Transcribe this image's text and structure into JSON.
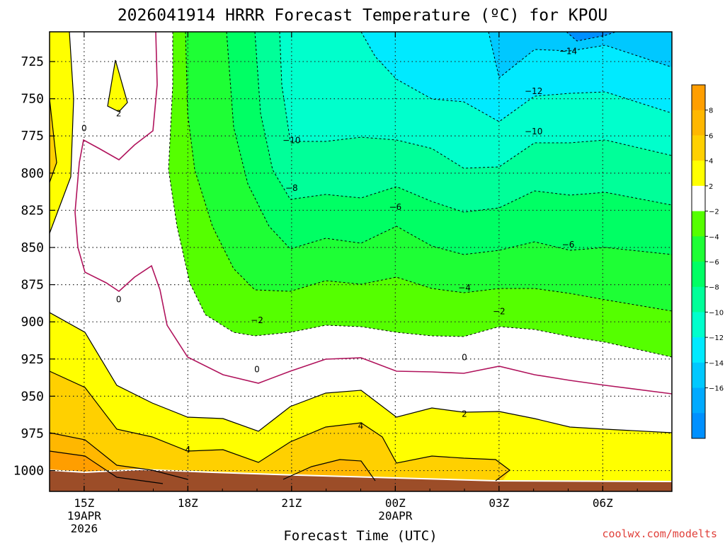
{
  "chart_data": {
    "type": "heatmap",
    "title": "2026041914 HRRR Forecast Temperature (ºC) for KPOU",
    "xlabel": "Forecast Time (UTC)",
    "ylabel": "",
    "y_axis": {
      "scale": "pressure (reversed)",
      "ticks": [
        725,
        750,
        775,
        800,
        825,
        850,
        875,
        900,
        925,
        950,
        975,
        1000
      ],
      "range": [
        1014,
        705
      ]
    },
    "x_axis": {
      "ticks": [
        {
          "hour": 15,
          "lines": [
            "15Z",
            "19APR",
            "2026"
          ]
        },
        {
          "hour": 18,
          "lines": [
            "18Z"
          ]
        },
        {
          "hour": 21,
          "lines": [
            "21Z"
          ]
        },
        {
          "hour": 24,
          "lines": [
            "00Z",
            "20APR"
          ]
        },
        {
          "hour": 27,
          "lines": [
            "03Z"
          ]
        },
        {
          "hour": 30,
          "lines": [
            "06Z"
          ]
        }
      ],
      "range_hours": [
        14,
        32
      ]
    },
    "grid": true,
    "contour_labels": [
      {
        "hour": 16,
        "p": 760,
        "text": "2"
      },
      {
        "hour": 15,
        "p": 770,
        "text": "0"
      },
      {
        "hour": 16,
        "p": 885,
        "text": "0"
      },
      {
        "hour": 20,
        "p": 932,
        "text": "0"
      },
      {
        "hour": 26,
        "p": 924,
        "text": "0"
      },
      {
        "hour": 20,
        "p": 899,
        "text": "−2"
      },
      {
        "hour": 27,
        "p": 893,
        "text": "−2"
      },
      {
        "hour": 26,
        "p": 877,
        "text": "−4"
      },
      {
        "hour": 24,
        "p": 823,
        "text": "−6"
      },
      {
        "hour": 29,
        "p": 848,
        "text": "−6"
      },
      {
        "hour": 21,
        "p": 810,
        "text": "−8"
      },
      {
        "hour": 21,
        "p": 778,
        "text": "−10"
      },
      {
        "hour": 28,
        "p": 772,
        "text": "−10"
      },
      {
        "hour": 28,
        "p": 745,
        "text": "−12"
      },
      {
        "hour": 29,
        "p": 718,
        "text": "−14"
      },
      {
        "hour": 26,
        "p": 962,
        "text": "2"
      },
      {
        "hour": 18,
        "p": 986,
        "text": "4"
      },
      {
        "hour": 23,
        "p": 970,
        "text": "4"
      }
    ],
    "colorbar": [
      {
        "label": "8",
        "color": "#ff9e00"
      },
      {
        "label": "6",
        "color": "#ffb700"
      },
      {
        "label": "4",
        "color": "#ffd000"
      },
      {
        "label": "2",
        "color": "#ffff00"
      },
      {
        "label": "−2",
        "color": "#ffffff"
      },
      {
        "label": "−4",
        "color": "#55ff00"
      },
      {
        "label": "−6",
        "color": "#1eff35"
      },
      {
        "label": "−8",
        "color": "#00ff64"
      },
      {
        "label": "−10",
        "color": "#00ff99"
      },
      {
        "label": "−12",
        "color": "#00ffcc"
      },
      {
        "label": "−14",
        "color": "#00eaff"
      },
      {
        "label": "−16",
        "color": "#00c8ff"
      },
      {
        "label": "",
        "color": "#00aaff"
      },
      {
        "label": "",
        "color": "#0090ff"
      }
    ]
  },
  "credit": "coolwx.com/modelts",
  "colors": {
    "ground": "#9c4d28",
    "zero_line": "#b0135c",
    "t_above_8": "#ff9e00",
    "t_6_8": "#ffb700",
    "t_4_6": "#ffd000",
    "t_2_4": "#ffff00",
    "t_m2_2": "#ffffff",
    "t_m4_m2": "#55ff00",
    "t_m6_m4": "#1eff35",
    "t_m8_m6": "#00ff64",
    "t_m10_m8": "#00ff99",
    "t_m12_m10": "#00ffcc",
    "t_m14_m12": "#00eaff",
    "t_m16_m14": "#00c8ff",
    "t_below_m16": "#0090ff"
  }
}
